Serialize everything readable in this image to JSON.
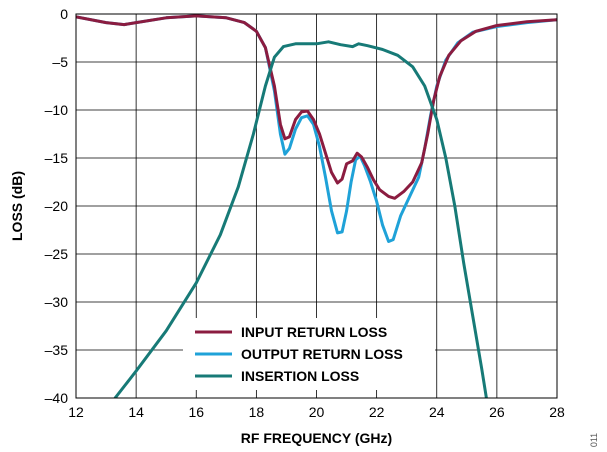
{
  "chart_data": {
    "type": "line",
    "xlabel": "RF FREQUENCY (GHz)",
    "ylabel": "LOSS (dB)",
    "xlim": [
      12,
      28
    ],
    "ylim": [
      -40,
      0
    ],
    "x_ticks": [
      12,
      14,
      16,
      18,
      20,
      22,
      24,
      26,
      28
    ],
    "y_ticks": [
      0,
      -5,
      -10,
      -15,
      -20,
      -25,
      -30,
      -35,
      -40
    ],
    "x_tick_labels": [
      "12",
      "14",
      "16",
      "18",
      "20",
      "22",
      "24",
      "26",
      "28"
    ],
    "y_tick_labels": [
      "0",
      "–5",
      "–10",
      "–15",
      "–20",
      "–25",
      "–30",
      "–35",
      "–40"
    ],
    "grid": true,
    "legend_position": "bottom-center",
    "figure_id": "011",
    "series": [
      {
        "name": "INPUT RETURN LOSS",
        "color": "#8B1C40",
        "points": [
          [
            12,
            -0.3
          ],
          [
            13,
            -0.9
          ],
          [
            13.6,
            -1.1
          ],
          [
            14,
            -0.9
          ],
          [
            15,
            -0.4
          ],
          [
            16,
            -0.2
          ],
          [
            17,
            -0.4
          ],
          [
            17.6,
            -0.9
          ],
          [
            18,
            -1.8
          ],
          [
            18.3,
            -3.5
          ],
          [
            18.6,
            -7.5
          ],
          [
            18.8,
            -11.5
          ],
          [
            18.95,
            -13.0
          ],
          [
            19.1,
            -12.8
          ],
          [
            19.3,
            -11.0
          ],
          [
            19.5,
            -10.2
          ],
          [
            19.7,
            -10.1
          ],
          [
            19.9,
            -11.0
          ],
          [
            20.1,
            -12.5
          ],
          [
            20.3,
            -14.5
          ],
          [
            20.5,
            -16.5
          ],
          [
            20.7,
            -17.6
          ],
          [
            20.85,
            -17.2
          ],
          [
            21.0,
            -15.6
          ],
          [
            21.2,
            -15.3
          ],
          [
            21.35,
            -14.5
          ],
          [
            21.5,
            -14.9
          ],
          [
            21.7,
            -16.0
          ],
          [
            21.9,
            -17.3
          ],
          [
            22.1,
            -18.3
          ],
          [
            22.4,
            -19.0
          ],
          [
            22.6,
            -19.2
          ],
          [
            22.9,
            -18.5
          ],
          [
            23.2,
            -17.5
          ],
          [
            23.5,
            -15.5
          ],
          [
            23.7,
            -12.5
          ],
          [
            23.9,
            -9.0
          ],
          [
            24.1,
            -6.5
          ],
          [
            24.4,
            -4.3
          ],
          [
            24.8,
            -2.8
          ],
          [
            25.3,
            -1.8
          ],
          [
            26,
            -1.2
          ],
          [
            27,
            -0.8
          ],
          [
            28,
            -0.6
          ]
        ]
      },
      {
        "name": "OUTPUT RETURN LOSS",
        "color": "#1FA2D8",
        "points": [
          [
            12,
            -0.3
          ],
          [
            13,
            -0.9
          ],
          [
            13.6,
            -1.1
          ],
          [
            14,
            -0.9
          ],
          [
            15,
            -0.4
          ],
          [
            16,
            -0.2
          ],
          [
            17,
            -0.4
          ],
          [
            17.6,
            -0.9
          ],
          [
            18,
            -1.8
          ],
          [
            18.3,
            -3.5
          ],
          [
            18.6,
            -8.0
          ],
          [
            18.8,
            -12.5
          ],
          [
            18.95,
            -14.6
          ],
          [
            19.1,
            -14.0
          ],
          [
            19.3,
            -12.0
          ],
          [
            19.5,
            -10.8
          ],
          [
            19.7,
            -10.6
          ],
          [
            19.9,
            -11.5
          ],
          [
            20.1,
            -13.8
          ],
          [
            20.3,
            -17.0
          ],
          [
            20.5,
            -20.5
          ],
          [
            20.7,
            -22.8
          ],
          [
            20.85,
            -22.7
          ],
          [
            21.0,
            -20.5
          ],
          [
            21.15,
            -17.5
          ],
          [
            21.3,
            -15.2
          ],
          [
            21.45,
            -14.8
          ],
          [
            21.6,
            -15.8
          ],
          [
            21.8,
            -17.5
          ],
          [
            22.0,
            -19.5
          ],
          [
            22.2,
            -22.0
          ],
          [
            22.4,
            -23.7
          ],
          [
            22.55,
            -23.5
          ],
          [
            22.8,
            -21.0
          ],
          [
            23.1,
            -19.0
          ],
          [
            23.4,
            -17.0
          ],
          [
            23.6,
            -14.0
          ],
          [
            23.8,
            -10.5
          ],
          [
            24.0,
            -7.5
          ],
          [
            24.3,
            -4.8
          ],
          [
            24.7,
            -3.0
          ],
          [
            25.2,
            -1.9
          ],
          [
            26,
            -1.3
          ],
          [
            27,
            -0.9
          ],
          [
            28,
            -0.6
          ]
        ]
      },
      {
        "name": "INSERTION LOSS",
        "color": "#177A77",
        "points": [
          [
            13.3,
            -40
          ],
          [
            14,
            -37.2
          ],
          [
            15,
            -33.0
          ],
          [
            16,
            -28.0
          ],
          [
            16.8,
            -23.0
          ],
          [
            17.4,
            -18.0
          ],
          [
            17.9,
            -12.5
          ],
          [
            18.3,
            -7.5
          ],
          [
            18.6,
            -4.5
          ],
          [
            18.9,
            -3.4
          ],
          [
            19.3,
            -3.1
          ],
          [
            20,
            -3.1
          ],
          [
            20.4,
            -2.9
          ],
          [
            20.8,
            -3.2
          ],
          [
            21.2,
            -3.4
          ],
          [
            21.4,
            -3.1
          ],
          [
            21.7,
            -3.3
          ],
          [
            22.2,
            -3.7
          ],
          [
            22.7,
            -4.3
          ],
          [
            23.2,
            -5.5
          ],
          [
            23.6,
            -7.5
          ],
          [
            24.0,
            -11.0
          ],
          [
            24.3,
            -15.0
          ],
          [
            24.6,
            -20.0
          ],
          [
            24.9,
            -26.0
          ],
          [
            25.2,
            -31.5
          ],
          [
            25.5,
            -37.0
          ],
          [
            25.65,
            -40
          ]
        ]
      }
    ]
  }
}
